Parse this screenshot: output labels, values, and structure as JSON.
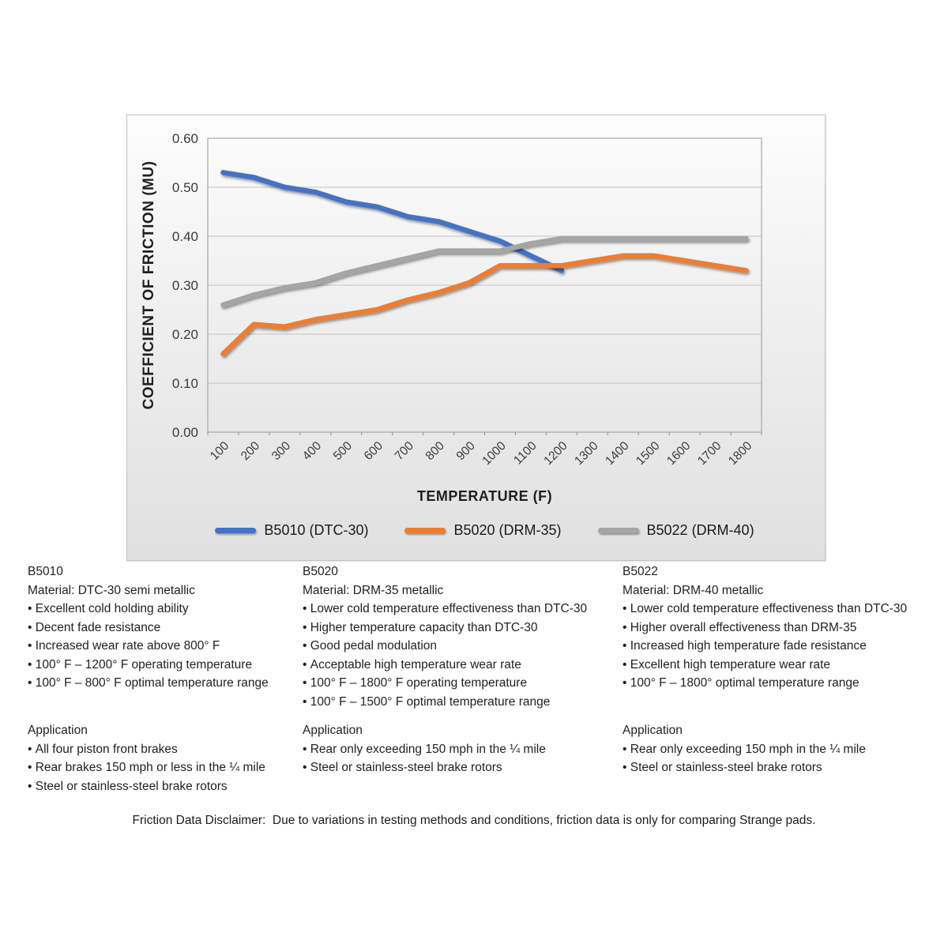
{
  "chart_data": {
    "type": "line",
    "title": "",
    "xlabel": "TEMPERATURE (F)",
    "ylabel": "COEFFICIENT OF FRICTION (MU)",
    "x_categories": [
      "100",
      "200",
      "300",
      "400",
      "500",
      "600",
      "700",
      "800",
      "900",
      "1000",
      "1100",
      "1200",
      "1300",
      "1400",
      "1500",
      "1600",
      "1700",
      "1800"
    ],
    "ylim": [
      0,
      0.6
    ],
    "ytick_labels": [
      "0.00",
      "0.10",
      "0.20",
      "0.30",
      "0.40",
      "0.50",
      "0.60"
    ],
    "grid": true,
    "legend_position": "bottom",
    "series": [
      {
        "name": "B5010 (DTC-30)",
        "color": "#4472C4",
        "values": [
          0.53,
          0.52,
          0.5,
          0.49,
          0.47,
          0.46,
          0.44,
          0.43,
          0.41,
          0.39,
          0.36,
          0.33
        ]
      },
      {
        "name": "B5020 (DRM-35)",
        "color": "#ED7D31",
        "values": [
          0.16,
          0.22,
          0.215,
          0.23,
          0.24,
          0.25,
          0.27,
          0.285,
          0.305,
          0.34,
          0.34,
          0.34,
          0.35,
          0.36,
          0.36,
          0.35,
          0.34,
          0.33
        ]
      },
      {
        "name": "B5022 (DRM-40)",
        "color": "#A5A5A5",
        "values": [
          0.26,
          0.28,
          0.295,
          0.305,
          0.325,
          0.34,
          0.355,
          0.37,
          0.37,
          0.37,
          0.385,
          0.395,
          0.395,
          0.395,
          0.395,
          0.395,
          0.395,
          0.395
        ]
      }
    ]
  },
  "columns": [
    {
      "heading": "B5010",
      "material": "Material: DTC-30 semi metallic",
      "features": [
        "Excellent cold holding ability",
        "Decent fade resistance",
        "Increased wear rate above 800° F",
        "100° F – 1200° F operating temperature",
        "100° F – 800° F optimal temperature range"
      ],
      "application_heading": "Application",
      "applications": [
        "All four piston front brakes",
        "Rear brakes 150 mph or less in the ¼ mile",
        "Steel or stainless-steel brake rotors"
      ]
    },
    {
      "heading": "B5020",
      "material": "Material: DRM-35 metallic",
      "features": [
        "Lower cold temperature effectiveness than DTC-30",
        "Higher temperature capacity than DTC-30",
        "Good pedal modulation",
        "Acceptable high temperature wear rate",
        "100° F – 1800° F operating temperature",
        "100° F – 1500° F optimal temperature range"
      ],
      "application_heading": "Application",
      "applications": [
        "Rear only exceeding 150 mph in the ¼ mile",
        "Steel or stainless-steel brake rotors"
      ]
    },
    {
      "heading": "B5022",
      "material": "Material: DRM-40 metallic",
      "features": [
        "Lower cold temperature effectiveness than DTC-30",
        "Higher overall effectiveness than DRM-35",
        "Increased high temperature fade resistance",
        "Excellent high temperature wear rate",
        "100° F – 1800° optimal temperature range"
      ],
      "application_heading": "Application",
      "applications": [
        "Rear only exceeding 150 mph in the ¼ mile",
        "Steel or stainless-steel brake rotors"
      ]
    }
  ],
  "disclaimer": "Friction Data Disclaimer:  Due to variations in testing methods and conditions, friction data is only for comparing Strange pads."
}
